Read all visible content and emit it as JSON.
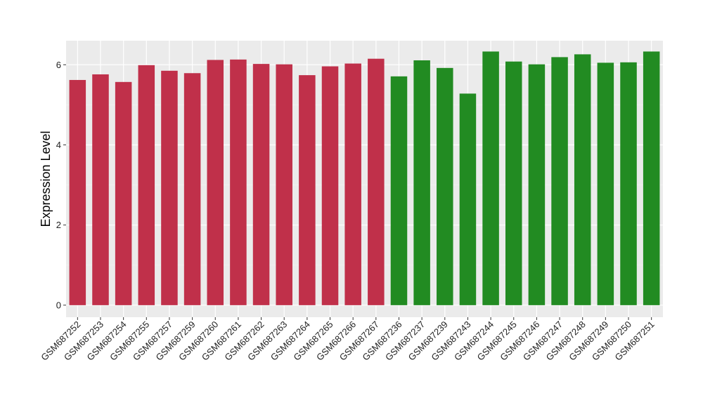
{
  "chart_data": {
    "type": "bar",
    "title": "",
    "xlabel": "",
    "ylabel": "Expression Level",
    "ylim": [
      -0.3,
      6.6
    ],
    "yticks": [
      0,
      2,
      4,
      6
    ],
    "grid": true,
    "legend": "none",
    "panel_background": "#ebebeb",
    "categories": [
      "GSM687252",
      "GSM687253",
      "GSM687254",
      "GSM687255",
      "GSM687257",
      "GSM687259",
      "GSM687260",
      "GSM687261",
      "GSM687262",
      "GSM687263",
      "GSM687264",
      "GSM687265",
      "GSM687266",
      "GSM687267",
      "GSM687236",
      "GSM687237",
      "GSM687239",
      "GSM687243",
      "GSM687244",
      "GSM687245",
      "GSM687246",
      "GSM687247",
      "GSM687248",
      "GSM687249",
      "GSM687250",
      "GSM687251"
    ],
    "values": [
      5.62,
      5.76,
      5.57,
      5.99,
      5.85,
      5.79,
      6.12,
      6.13,
      6.02,
      6.01,
      5.74,
      5.96,
      6.03,
      6.15,
      5.71,
      6.11,
      5.92,
      5.28,
      6.33,
      6.08,
      6.01,
      6.19,
      6.26,
      6.05,
      6.06,
      6.33
    ],
    "colors": [
      "#c0304a",
      "#c0304a",
      "#c0304a",
      "#c0304a",
      "#c0304a",
      "#c0304a",
      "#c0304a",
      "#c0304a",
      "#c0304a",
      "#c0304a",
      "#c0304a",
      "#c0304a",
      "#c0304a",
      "#c0304a",
      "#228b22",
      "#228b22",
      "#228b22",
      "#228b22",
      "#228b22",
      "#228b22",
      "#228b22",
      "#228b22",
      "#228b22",
      "#228b22",
      "#228b22",
      "#228b22"
    ]
  }
}
